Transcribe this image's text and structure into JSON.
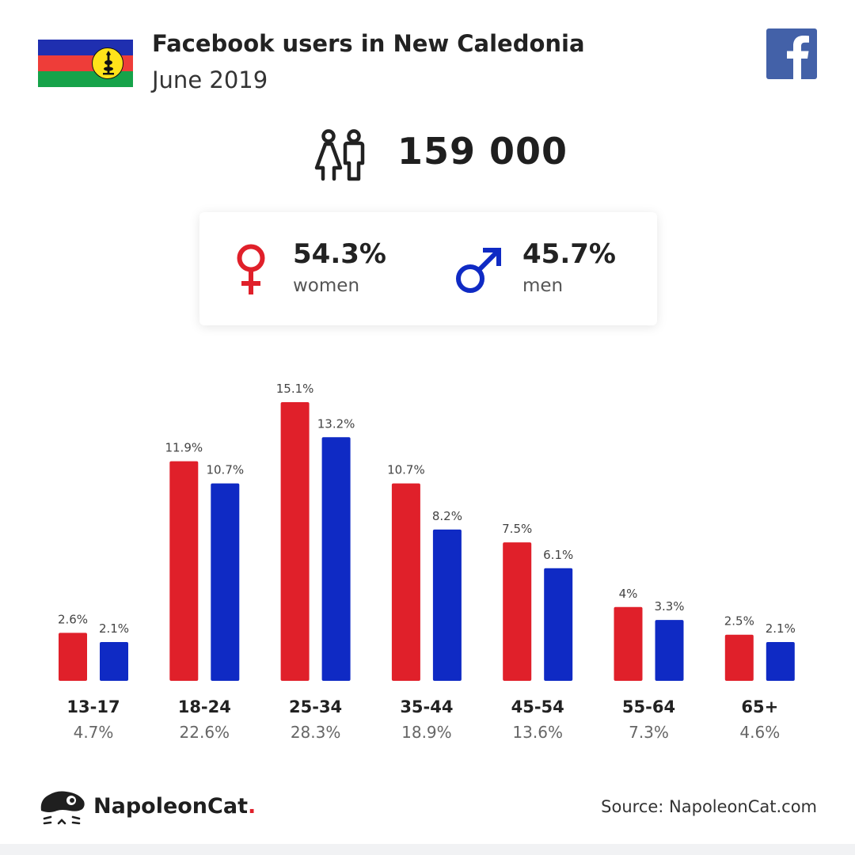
{
  "header": {
    "title": "Facebook users in New Caledonia",
    "subtitle": "June 2019",
    "flag_icon": "new-caledonia-flag-icon",
    "social_icon": "facebook-icon"
  },
  "total": {
    "icon": "people-icon",
    "value": "159 000"
  },
  "gender": {
    "women": {
      "pct": "54.3%",
      "label": "women",
      "icon": "female-symbol-icon",
      "color": "#e0202a"
    },
    "men": {
      "pct": "45.7%",
      "label": "men",
      "icon": "male-symbol-icon",
      "color": "#0f2ac4"
    }
  },
  "chart_data": {
    "type": "bar",
    "categories": [
      "13-17",
      "18-24",
      "25-34",
      "35-44",
      "45-54",
      "55-64",
      "65+"
    ],
    "category_totals": [
      "4.7%",
      "22.6%",
      "28.3%",
      "18.9%",
      "13.6%",
      "7.3%",
      "4.6%"
    ],
    "series": [
      {
        "name": "women",
        "color": "#e0202a",
        "values": [
          2.6,
          11.9,
          15.1,
          10.7,
          7.5,
          4.0,
          2.5
        ],
        "labels": [
          "2.6%",
          "11.9%",
          "15.1%",
          "10.7%",
          "7.5%",
          "4%",
          "2.5%"
        ]
      },
      {
        "name": "men",
        "color": "#0f2ac4",
        "values": [
          2.1,
          10.7,
          13.2,
          8.2,
          6.1,
          3.3,
          2.1
        ],
        "labels": [
          "2.1%",
          "10.7%",
          "13.2%",
          "8.2%",
          "6.1%",
          "3.3%",
          "2.1%"
        ]
      }
    ],
    "ylim": [
      0,
      15.1
    ],
    "grid": false
  },
  "footer": {
    "brand": "NapoleonCat",
    "brand_dot": ".",
    "brand_icon": "napoleoncat-logo-icon",
    "source": "Source: NapoleonCat.com"
  },
  "colors": {
    "women": "#e0202a",
    "men": "#0f2ac4",
    "facebook": "#4361a8"
  }
}
